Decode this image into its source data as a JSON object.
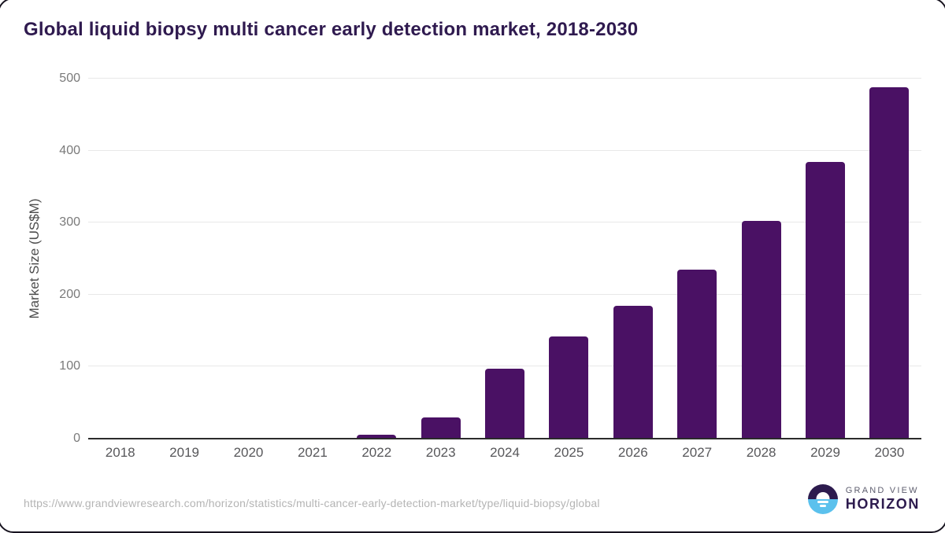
{
  "title": "Global liquid biopsy multi cancer early detection market, 2018-2030",
  "chart_data": {
    "type": "bar",
    "categories": [
      "2018",
      "2019",
      "2020",
      "2021",
      "2022",
      "2023",
      "2024",
      "2025",
      "2026",
      "2027",
      "2028",
      "2029",
      "2030"
    ],
    "values": [
      0,
      0,
      0,
      0,
      6,
      30,
      97,
      142,
      184,
      235,
      302,
      384,
      488
    ],
    "title": "Global liquid biopsy multi cancer early detection market, 2018-2030",
    "xlabel": "",
    "ylabel": "Market Size (US$M)",
    "ylim": [
      0,
      500
    ],
    "yticks": [
      0,
      100,
      200,
      300,
      400,
      500
    ],
    "grid": true,
    "legend": "none",
    "bar_color": "#4a1164"
  },
  "colors": {
    "title": "#2f1a4f",
    "bar": "#4a1164",
    "gridline": "#e8e8e8",
    "axis_line": "#2b2b2b",
    "tick_label": "#7a7a7a",
    "logo_purple": "#2d1b4e",
    "logo_blue": "#5bc1ed"
  },
  "footer": {
    "source_url": "https://www.grandviewresearch.com/horizon/statistics/multi-cancer-early-detection-market/type/liquid-biopsy/global",
    "logo": {
      "icon": "sunrise-horizon-icon",
      "top_text": "GRAND VIEW",
      "bottom_text": "HORIZON"
    }
  }
}
